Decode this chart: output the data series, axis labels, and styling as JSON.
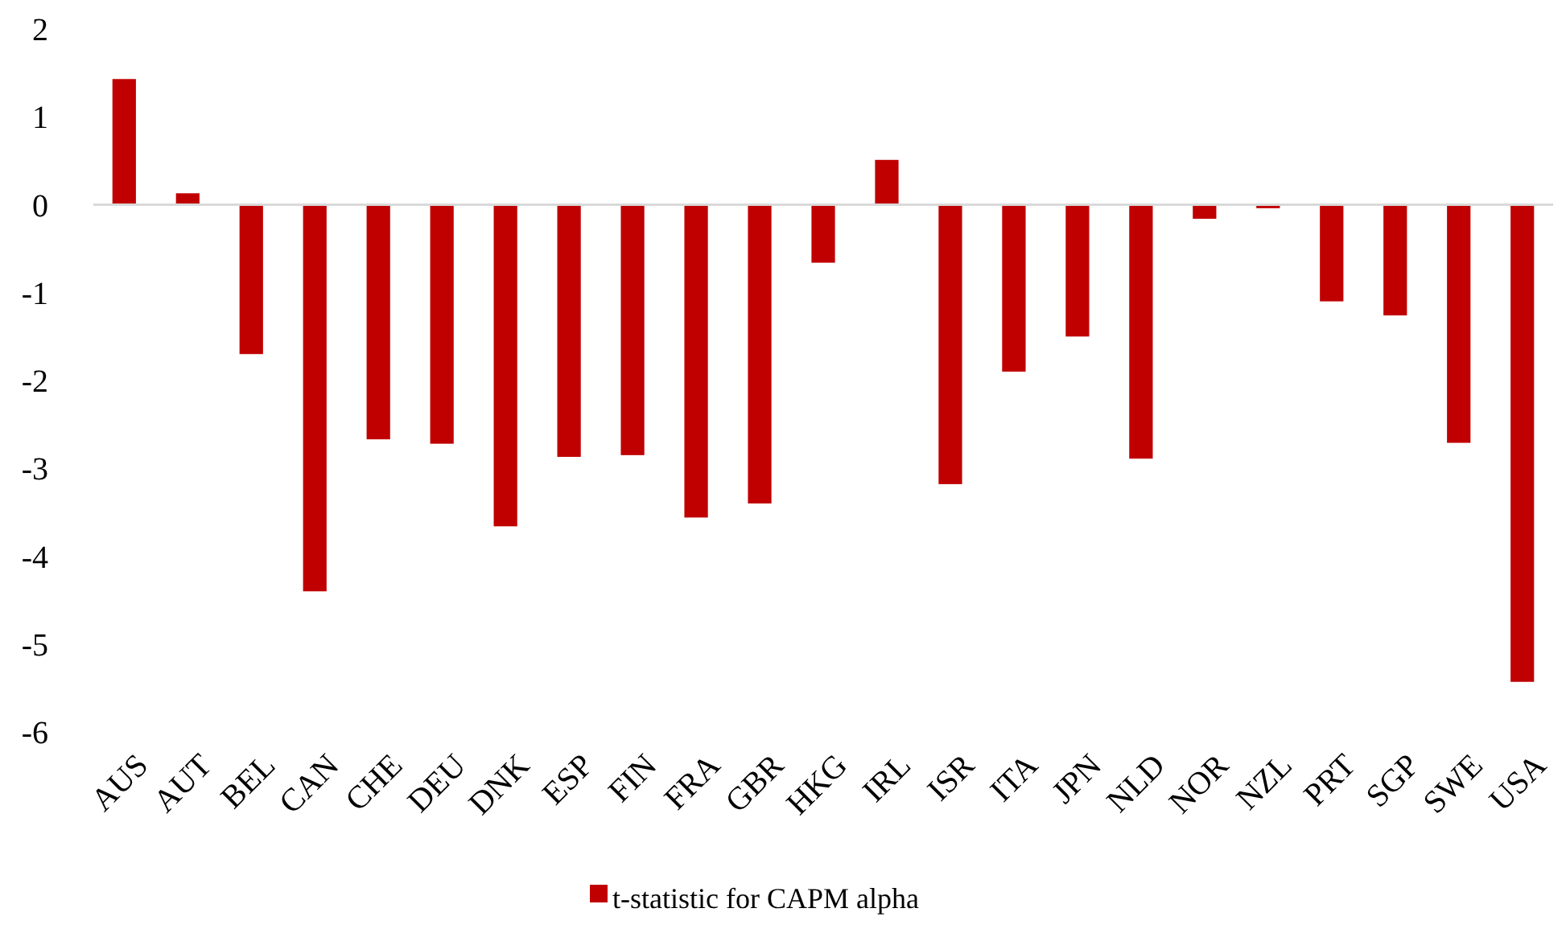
{
  "chart_data": {
    "type": "bar",
    "categories": [
      "AUS",
      "AUT",
      "BEL",
      "CAN",
      "CHE",
      "DEU",
      "DNK",
      "ESP",
      "FIN",
      "FRA",
      "GBR",
      "HKG",
      "IRL",
      "ISR",
      "ITA",
      "JPN",
      "NLD",
      "NOR",
      "NZL",
      "PRT",
      "SGP",
      "SWE",
      "USA"
    ],
    "series": [
      {
        "name": "t-statistic for CAPM alpha",
        "color": "#c00000",
        "values": [
          1.43,
          0.13,
          -1.7,
          -4.4,
          -2.67,
          -2.72,
          -3.66,
          -2.87,
          -2.85,
          -3.56,
          -3.4,
          -0.66,
          0.51,
          -3.18,
          -1.9,
          -1.5,
          -2.89,
          -0.16,
          -0.04,
          -1.1,
          -1.26,
          -2.71,
          -5.43
        ]
      }
    ],
    "ylim": [
      -6,
      2
    ],
    "yticks": [
      -6,
      -5,
      -4,
      -3,
      -2,
      -1,
      0,
      1,
      2
    ],
    "legend": "bottom"
  }
}
